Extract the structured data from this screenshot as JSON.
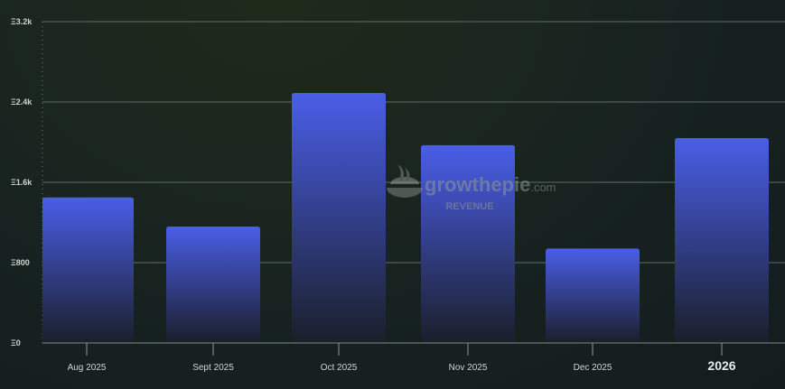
{
  "chart_data": {
    "type": "bar",
    "categories": [
      "Aug 2025",
      "Sept 2025",
      "Oct 2025",
      "Nov 2025",
      "Dec 2025",
      "2026"
    ],
    "values": [
      1450,
      1160,
      2490,
      1970,
      940,
      2040
    ],
    "ylim": [
      0,
      3200
    ],
    "y_ticks": [
      {
        "value": 0,
        "label": "Ξ0"
      },
      {
        "value": 800,
        "label": "Ξ800"
      },
      {
        "value": 1600,
        "label": "Ξ1.6k"
      },
      {
        "value": 2400,
        "label": "Ξ2.4k"
      },
      {
        "value": 3200,
        "label": "Ξ3.2k"
      }
    ],
    "grid": true,
    "bar_color_top": "#4a5ee8",
    "bar_color_bottom": "#1a1f2a"
  },
  "watermark": {
    "brand_main": "growthepie",
    "brand_suffix": ".com",
    "subtitle": "REVENUE"
  }
}
